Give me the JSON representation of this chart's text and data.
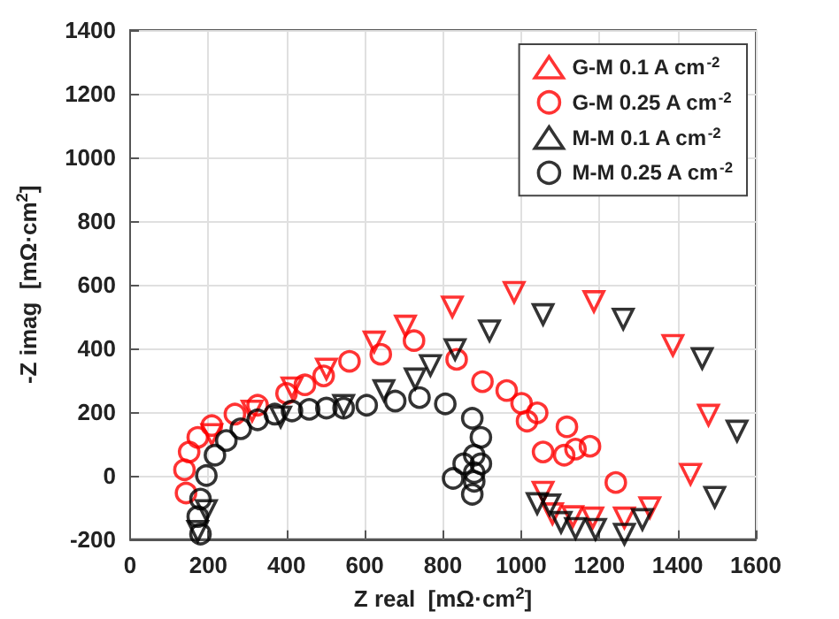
{
  "chart_data": {
    "type": "scatter",
    "xlabel": "Z real  [mΩ·cm$^{2}$]",
    "ylabel": "-Z imag  [mΩ·cm$^{2}$]",
    "xlim": [
      0,
      1600
    ],
    "ylim": [
      -200,
      1400
    ],
    "xticks": [
      0,
      200,
      400,
      600,
      800,
      1000,
      1200,
      1400,
      1600
    ],
    "yticks": [
      -200,
      0,
      200,
      400,
      600,
      800,
      1000,
      1200,
      1400
    ],
    "grid": true,
    "legend": "top right",
    "series": [
      {
        "name": "G-M 0.1 A cm$^{-2}$",
        "color": "#ff0000",
        "marker": "triangle",
        "x": [
          209,
          312,
          414,
          502,
          624,
          704,
          824,
          982,
          1186,
          1388,
          1479,
          1433,
          1329,
          1264,
          1183,
          1132,
          1080,
          1056
        ],
        "values": [
          129,
          203,
          276,
          335,
          420,
          470,
          530,
          576,
          547,
          409,
          190,
          4,
          -101,
          -133,
          -133,
          -129,
          -120,
          -52
        ]
      },
      {
        "name": "G-M 0.25 A cm$^{-2}$",
        "color": "#ff0000",
        "marker": "circle",
        "x": [
          143,
          139,
          151,
          173,
          209,
          268,
          326,
          400,
          447,
          495,
          561,
          641,
          726,
          835,
          901,
          963,
          1001,
          1015,
          1041,
          1056,
          1110,
          1117,
          1139,
          1176,
          1242
        ],
        "values": [
          -55,
          18,
          74,
          120,
          157,
          193,
          221,
          258,
          285,
          313,
          359,
          381,
          424,
          365,
          295,
          267,
          227,
          171,
          197,
          74,
          64,
          153,
          83,
          92,
          -22
        ]
      },
      {
        "name": "M-M 0.1 A cm$^{-2}$",
        "color": "#000000",
        "marker": "triangle",
        "x": [
          173,
          195,
          385,
          546,
          649,
          729,
          768,
          831,
          919,
          1056,
          1261,
          1463,
          1552,
          1495,
          1310,
          1264,
          1190,
          1139,
          1102,
          1073,
          1041
        ],
        "values": [
          -175,
          -110,
          184,
          221,
          267,
          304,
          346,
          396,
          455,
          506,
          492,
          368,
          140,
          -68,
          -138,
          -184,
          -169,
          -166,
          -147,
          -92,
          -88
        ]
      },
      {
        "name": "M-M 0.25 A cm$^{-2}$",
        "color": "#000000",
        "marker": "circle",
        "x": [
          180,
          173,
          180,
          195,
          217,
          246,
          283,
          326,
          370,
          414,
          458,
          502,
          546,
          605,
          678,
          740,
          806,
          875,
          897,
          880,
          853,
          826,
          880,
          875,
          880,
          897
        ],
        "values": [
          -184,
          -129,
          -74,
          0,
          64,
          110,
          147,
          175,
          193,
          203,
          208,
          212,
          212,
          221,
          234,
          245,
          225,
          180,
          120,
          64,
          37,
          -9,
          9,
          -59,
          -18,
          37
        ]
      }
    ]
  }
}
